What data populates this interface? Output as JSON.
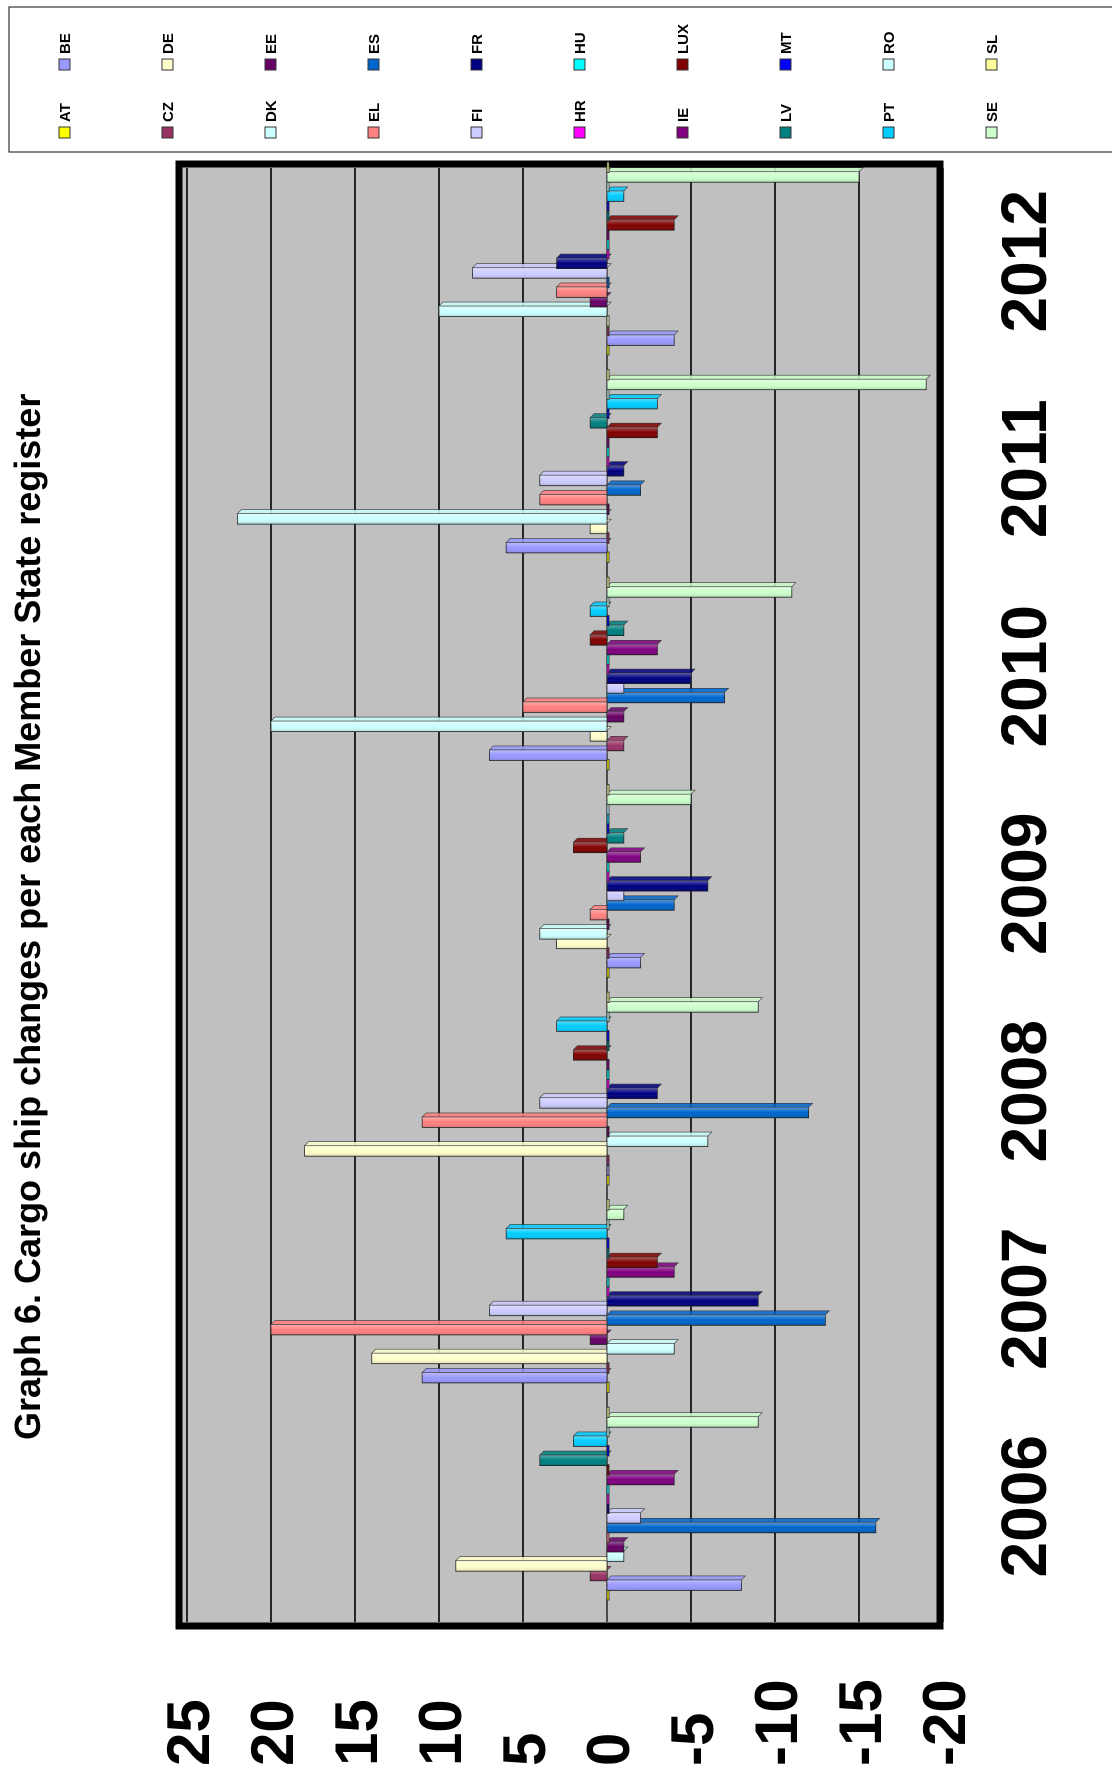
{
  "chart_data": {
    "type": "bar",
    "title": "Graph 6. Cargo ship changes per each Member State register",
    "categories": [
      "2006",
      "2007",
      "2008",
      "2009",
      "2010",
      "2011",
      "2012"
    ],
    "ylim": [
      -20,
      25
    ],
    "yticks": [
      "25",
      "20",
      "15",
      "10",
      "5",
      "0",
      "-5",
      "-10",
      "-15",
      "-20"
    ],
    "ytick_values": [
      25,
      20,
      15,
      10,
      5,
      0,
      -5,
      -10,
      -15,
      -20
    ],
    "grid": true,
    "legend_position": "top",
    "series": [
      {
        "name": "AT",
        "color": "#ffff00",
        "values": [
          0,
          0,
          0,
          0,
          0,
          0,
          0
        ]
      },
      {
        "name": "BE",
        "color": "#9999ff",
        "values": [
          -8,
          11,
          0,
          -2,
          7,
          6,
          -4
        ]
      },
      {
        "name": "CZ",
        "color": "#993366",
        "values": [
          1,
          0,
          0,
          0,
          -1,
          0,
          0
        ]
      },
      {
        "name": "DE",
        "color": "#ffffcc",
        "values": [
          9,
          14,
          18,
          3,
          1,
          1,
          0
        ]
      },
      {
        "name": "DK",
        "color": "#ccffff",
        "values": [
          -1,
          -4,
          -6,
          4,
          20,
          22,
          10
        ]
      },
      {
        "name": "EE",
        "color": "#660066",
        "values": [
          -1,
          1,
          0,
          0,
          -1,
          0,
          1
        ]
      },
      {
        "name": "EL",
        "color": "#ff8080",
        "values": [
          0,
          20,
          11,
          1,
          5,
          4,
          3
        ]
      },
      {
        "name": "ES",
        "color": "#0066cc",
        "values": [
          -16,
          -13,
          -12,
          -4,
          -7,
          -2,
          0
        ]
      },
      {
        "name": "FI",
        "color": "#ccccff",
        "values": [
          -2,
          7,
          4,
          -1,
          -1,
          4,
          8
        ]
      },
      {
        "name": "FR",
        "color": "#000080",
        "values": [
          0,
          -9,
          -3,
          -6,
          -5,
          -1,
          3
        ]
      },
      {
        "name": "HR",
        "color": "#ff00ff",
        "values": [
          0,
          0,
          0,
          0,
          0,
          0,
          0
        ]
      },
      {
        "name": "HU",
        "color": "#00ffff",
        "values": [
          0,
          0,
          0,
          0,
          0,
          0,
          0
        ]
      },
      {
        "name": "IE",
        "color": "#800080",
        "values": [
          -4,
          -4,
          0,
          -2,
          -3,
          0,
          0
        ]
      },
      {
        "name": "LUX",
        "color": "#800000",
        "values": [
          0,
          -3,
          2,
          2,
          1,
          -3,
          -4
        ]
      },
      {
        "name": "LV",
        "color": "#008080",
        "values": [
          4,
          0,
          0,
          -1,
          -1,
          1,
          0
        ]
      },
      {
        "name": "MT",
        "color": "#0000ff",
        "values": [
          0,
          0,
          0,
          0,
          0,
          0,
          0
        ]
      },
      {
        "name": "PT",
        "color": "#00ccff",
        "values": [
          2,
          6,
          3,
          0,
          1,
          -3,
          -1
        ]
      },
      {
        "name": "RO",
        "color": "#ccffff",
        "values": [
          0,
          0,
          0,
          0,
          0,
          0,
          0
        ]
      },
      {
        "name": "SE",
        "color": "#ccffcc",
        "values": [
          -9,
          -1,
          -9,
          -5,
          -11,
          -19,
          -15
        ]
      },
      {
        "name": "SL",
        "color": "#ffff99",
        "values": [
          0,
          0,
          0,
          0,
          0,
          0,
          0
        ]
      }
    ]
  }
}
